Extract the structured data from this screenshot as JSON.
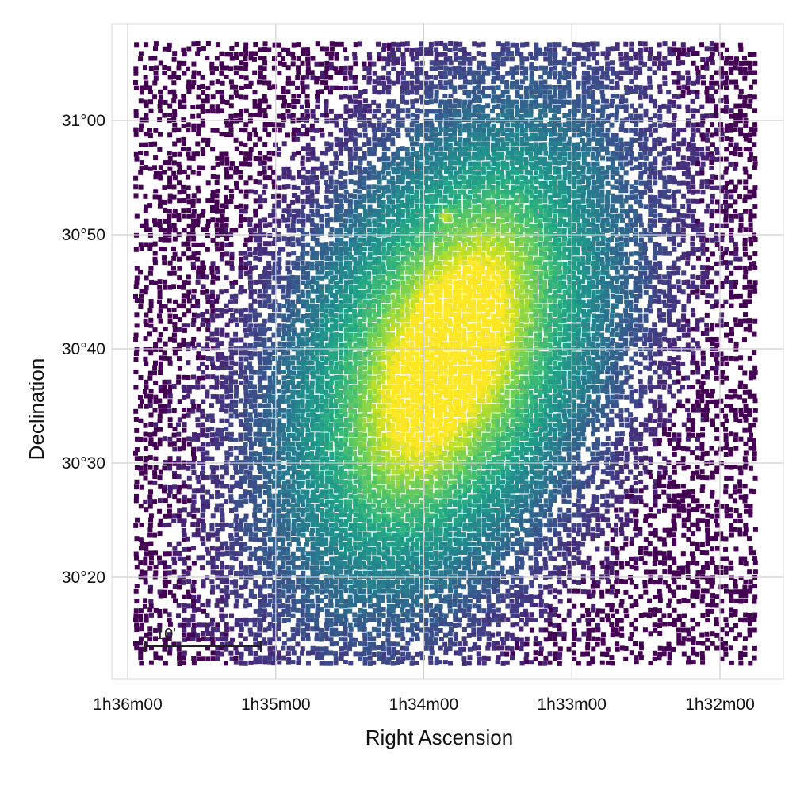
{
  "chart_data": {
    "type": "heatmap",
    "description_kind": "sky density map (pixelated point density, viridis colormap)",
    "colormap": "viridis",
    "colors": [
      "#440154",
      "#3b528b",
      "#21918c",
      "#5ec962",
      "#fde725"
    ],
    "xlabel": "Right Ascension",
    "ylabel": "Declination",
    "x_axis": {
      "direction": "decreasing-to-right",
      "ticks": [
        {
          "value_hours": 1.6,
          "label": "1h36m00"
        },
        {
          "value_hours": 1.58333,
          "label": "1h35m00"
        },
        {
          "value_hours": 1.56667,
          "label": "1h34m00"
        },
        {
          "value_hours": 1.55,
          "label": "1h33m00"
        },
        {
          "value_hours": 1.53333,
          "label": "1h32m00"
        }
      ],
      "range_hours": [
        1.6025,
        1.5325
      ]
    },
    "y_axis": {
      "ticks": [
        {
          "value_deg": 31.0,
          "label": "31°00"
        },
        {
          "value_deg": 30.8333,
          "label": "30°50"
        },
        {
          "value_deg": 30.6667,
          "label": "30°40"
        },
        {
          "value_deg": 30.5,
          "label": "30°30"
        },
        {
          "value_deg": 30.3333,
          "label": "30°20"
        }
      ],
      "range_deg": [
        30.2,
        31.1
      ]
    },
    "grid": true,
    "density_model": {
      "center_ra_hours": 1.5643,
      "center_dec_deg": 30.66,
      "position_angle_deg": 23,
      "bright_core_ra_hours": 1.5643,
      "bright_core_dec_deg": 30.66,
      "secondary_knot_ra_hours": 1.5644,
      "secondary_knot_dec_deg": 30.8625
    },
    "scalebar": {
      "label": "10'"
    }
  }
}
